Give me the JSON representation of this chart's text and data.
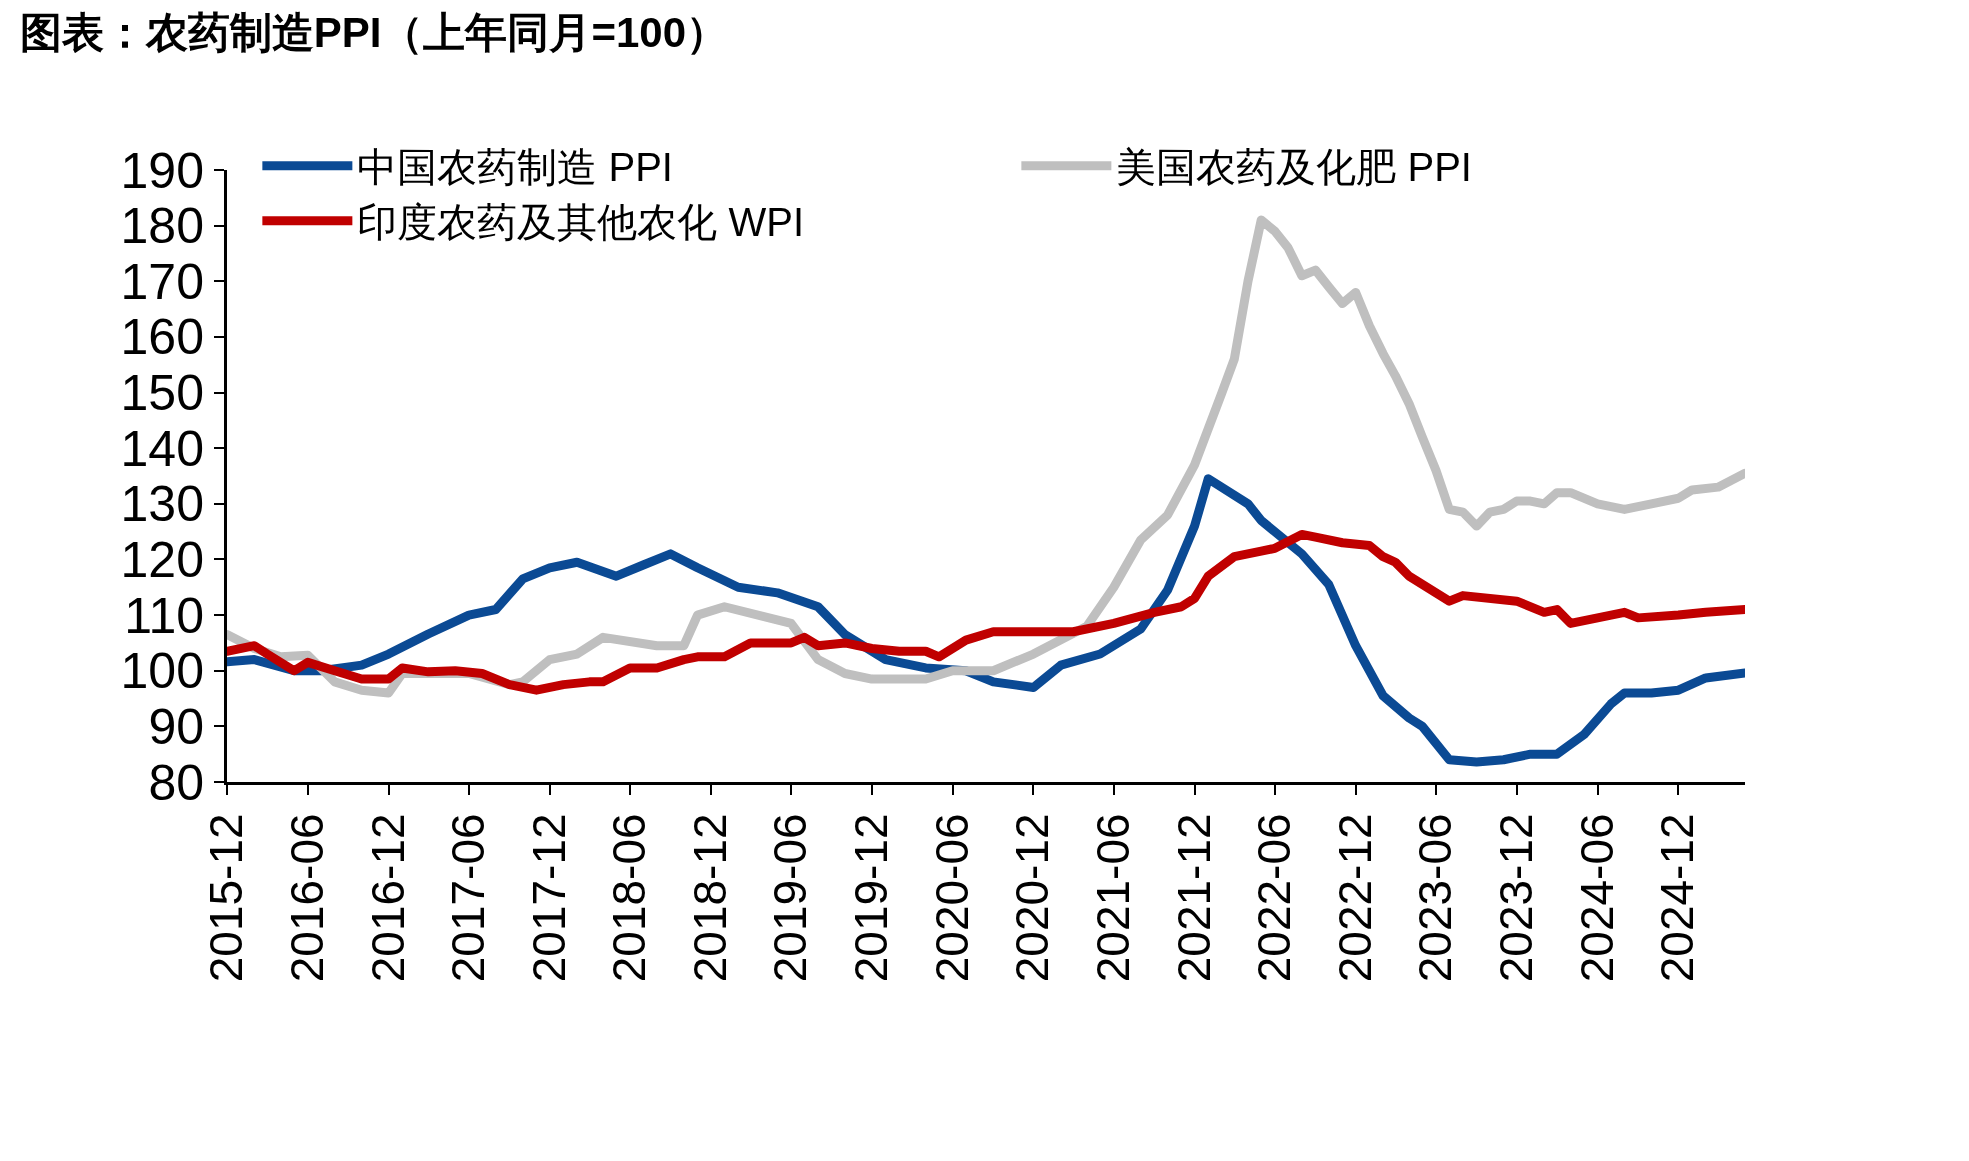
{
  "chart_data": {
    "type": "line",
    "title": "图表：农药制造PPI（上年同月=100）",
    "xlim": [
      "2015-12",
      "2025-05"
    ],
    "xticks": [
      "2015-12",
      "2016-06",
      "2016-12",
      "2017-06",
      "2017-12",
      "2018-06",
      "2018-12",
      "2019-06",
      "2019-12",
      "2020-06",
      "2020-12",
      "2021-06",
      "2021-12",
      "2022-06",
      "2022-12",
      "2023-06",
      "2023-12",
      "2024-06",
      "2024-12"
    ],
    "ylim": [
      80,
      190
    ],
    "yticks": [
      80,
      90,
      100,
      110,
      120,
      130,
      140,
      150,
      160,
      170,
      180,
      190
    ],
    "legend": "top left",
    "line_style": "solid",
    "series": [
      {
        "name": "中国农药制造 PPI",
        "color": "#0b4a94",
        "x": [
          "2015-12",
          "2016-02",
          "2016-05",
          "2016-07",
          "2016-10",
          "2016-12",
          "2017-03",
          "2017-06",
          "2017-08",
          "2017-10",
          "2017-12",
          "2018-02",
          "2018-05",
          "2018-07",
          "2018-09",
          "2018-11",
          "2019-02",
          "2019-05",
          "2019-08",
          "2019-10",
          "2020-01",
          "2020-04",
          "2020-07",
          "2020-09",
          "2020-12",
          "2021-02",
          "2021-05",
          "2021-08",
          "2021-10",
          "2021-12",
          "2022-01",
          "2022-04",
          "2022-05",
          "2022-08",
          "2022-10",
          "2022-12",
          "2023-02",
          "2023-04",
          "2023-05",
          "2023-07",
          "2023-09",
          "2023-11",
          "2024-01",
          "2024-03",
          "2024-05",
          "2024-07",
          "2024-08",
          "2024-10",
          "2024-12",
          "2025-02",
          "2025-05"
        ],
        "values": [
          101.6,
          102,
          100,
          100,
          101,
          103,
          106.6,
          110,
          111,
          116.5,
          118.5,
          119.5,
          117,
          119,
          121,
          118.5,
          115,
          114,
          111.5,
          106.5,
          102,
          100.5,
          100,
          98,
          97,
          101,
          103,
          107.5,
          114.5,
          126,
          134.5,
          130,
          127,
          121,
          115.5,
          104.5,
          95.5,
          91.5,
          90,
          84,
          83.6,
          84,
          85,
          85,
          88.5,
          94,
          96,
          96,
          96.5,
          98.7,
          99.6
        ]
      },
      {
        "name": "美国农药及化肥 PPI",
        "color": "#bfbfbf",
        "x": [
          "2015-12",
          "2016-02",
          "2016-04",
          "2016-06",
          "2016-08",
          "2016-10",
          "2016-12",
          "2017-01",
          "2017-06",
          "2017-09",
          "2017-10",
          "2017-12",
          "2018-02",
          "2018-04",
          "2018-08",
          "2018-10",
          "2018-11",
          "2019-01",
          "2019-06",
          "2019-08",
          "2019-10",
          "2019-12",
          "2020-04",
          "2020-06",
          "2020-09",
          "2020-12",
          "2021-04",
          "2021-06",
          "2021-08",
          "2021-10",
          "2021-12",
          "2022-02",
          "2022-03",
          "2022-04",
          "2022-05",
          "2022-06",
          "2022-07",
          "2022-08",
          "2022-09",
          "2022-10",
          "2022-11",
          "2022-12",
          "2023-01",
          "2023-02",
          "2023-03",
          "2023-04",
          "2023-05",
          "2023-06",
          "2023-07",
          "2023-08",
          "2023-09",
          "2023-10",
          "2023-11",
          "2023-12",
          "2024-01",
          "2024-02",
          "2024-03",
          "2024-04",
          "2024-06",
          "2024-08",
          "2024-10",
          "2024-12",
          "2025-01",
          "2025-03",
          "2025-05"
        ],
        "values": [
          106.5,
          104,
          102.5,
          102.8,
          98,
          96.5,
          96,
          99.5,
          99.5,
          97.5,
          98,
          102,
          103,
          106,
          104.5,
          104.5,
          110,
          111.5,
          108.5,
          102,
          99.5,
          98.5,
          98.5,
          100,
          100,
          103,
          108,
          115,
          123.5,
          128,
          137,
          150,
          156,
          170,
          181,
          179,
          176,
          171,
          172,
          169,
          166,
          168,
          162,
          157,
          153,
          148,
          142,
          136,
          129,
          128.5,
          126,
          128.5,
          129,
          130.5,
          130.5,
          130,
          132,
          132,
          130,
          129,
          130,
          131,
          132.5,
          133,
          135.5
        ]
      },
      {
        "name": "印度农药及其他农化 WPI",
        "color": "#c00000",
        "x": [
          "2015-12",
          "2016-02",
          "2016-03",
          "2016-05",
          "2016-06",
          "2016-08",
          "2016-10",
          "2016-12",
          "2017-01",
          "2017-03",
          "2017-05",
          "2017-07",
          "2017-09",
          "2017-11",
          "2018-01",
          "2018-03",
          "2018-04",
          "2018-06",
          "2018-08",
          "2018-10",
          "2018-11",
          "2019-01",
          "2019-03",
          "2019-06",
          "2019-07",
          "2019-08",
          "2019-10",
          "2019-12",
          "2020-02",
          "2020-04",
          "2020-05",
          "2020-07",
          "2020-09",
          "2020-12",
          "2021-03",
          "2021-06",
          "2021-09",
          "2021-11",
          "2021-12",
          "2022-01",
          "2022-03",
          "2022-05",
          "2022-06",
          "2022-08",
          "2022-09",
          "2022-11",
          "2023-01",
          "2023-02",
          "2023-03",
          "2023-04",
          "2023-06",
          "2023-07",
          "2023-08",
          "2023-12",
          "2024-02",
          "2024-03",
          "2024-04",
          "2024-06",
          "2024-08",
          "2024-09",
          "2024-12",
          "2025-02",
          "2025-05"
        ],
        "values": [
          103.5,
          104.5,
          103,
          100,
          101.5,
          100,
          98.5,
          98.5,
          100.5,
          99.8,
          100,
          99.5,
          97.5,
          96.5,
          97.5,
          98,
          98,
          100.5,
          100.5,
          102,
          102.5,
          102.5,
          105,
          105,
          106,
          104.5,
          105,
          104,
          103.5,
          103.5,
          102.5,
          105.5,
          107,
          107,
          107,
          108.5,
          110.5,
          111.5,
          113,
          117,
          120.5,
          121.5,
          122,
          124.5,
          124,
          123,
          122.5,
          120.5,
          119.5,
          117,
          114,
          112.5,
          113.5,
          112.5,
          110.5,
          111,
          108.5,
          109.5,
          110.5,
          109.5,
          110,
          110.5,
          111
        ]
      }
    ]
  }
}
